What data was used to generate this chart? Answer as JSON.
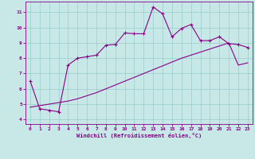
{
  "xlabel": "Windchill (Refroidissement éolien,°C)",
  "xlim": [
    -0.5,
    23.5
  ],
  "ylim": [
    3.7,
    11.7
  ],
  "xticks": [
    0,
    1,
    2,
    3,
    4,
    5,
    6,
    7,
    8,
    9,
    10,
    11,
    12,
    13,
    14,
    15,
    16,
    17,
    18,
    19,
    20,
    21,
    22,
    23
  ],
  "yticks": [
    4,
    5,
    6,
    7,
    8,
    9,
    10,
    11
  ],
  "bg_color": "#c8e8e8",
  "line_color": "#880088",
  "grid_color": "#99cccc",
  "line1_x": [
    0,
    1,
    2,
    3,
    4,
    5,
    6,
    7,
    8,
    9,
    10,
    11,
    12,
    13,
    14,
    15,
    16,
    17,
    18,
    19,
    20,
    21,
    22,
    23
  ],
  "line1_y": [
    6.5,
    4.7,
    4.6,
    4.5,
    7.55,
    8.0,
    8.1,
    8.2,
    8.85,
    8.9,
    9.65,
    9.6,
    9.6,
    11.35,
    10.9,
    9.4,
    9.95,
    10.2,
    9.15,
    9.15,
    9.4,
    8.95,
    8.9,
    8.7
  ],
  "line2_x": [
    0,
    1,
    2,
    3,
    4,
    5,
    6,
    7,
    8,
    9,
    10,
    11,
    12,
    13,
    14,
    15,
    16,
    17,
    18,
    19,
    20,
    21,
    22,
    23
  ],
  "line2_y": [
    4.8,
    4.9,
    5.0,
    5.1,
    5.2,
    5.35,
    5.55,
    5.75,
    6.0,
    6.25,
    6.5,
    6.75,
    7.0,
    7.25,
    7.5,
    7.75,
    8.0,
    8.2,
    8.4,
    8.6,
    8.8,
    9.0,
    7.55,
    7.7
  ]
}
